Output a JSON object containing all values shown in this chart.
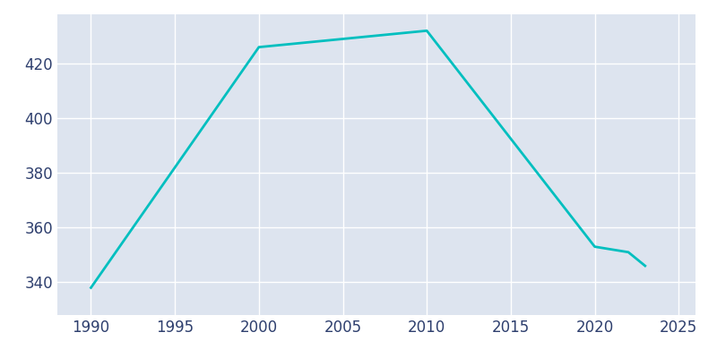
{
  "years": [
    1990,
    2000,
    2010,
    2020,
    2022,
    2023
  ],
  "population": [
    338,
    426,
    432,
    353,
    351,
    346
  ],
  "line_color": "#00BFBF",
  "axes_background_color": "#DDE4EF",
  "figure_background_color": "#FFFFFF",
  "grid_color": "#FFFFFF",
  "tick_label_color": "#2E3F6E",
  "xlim": [
    1988,
    2026
  ],
  "ylim": [
    328,
    438
  ],
  "yticks": [
    340,
    360,
    380,
    400,
    420
  ],
  "xticks": [
    1990,
    1995,
    2000,
    2005,
    2010,
    2015,
    2020,
    2025
  ],
  "line_width": 2.0,
  "tick_labelsize": 12
}
